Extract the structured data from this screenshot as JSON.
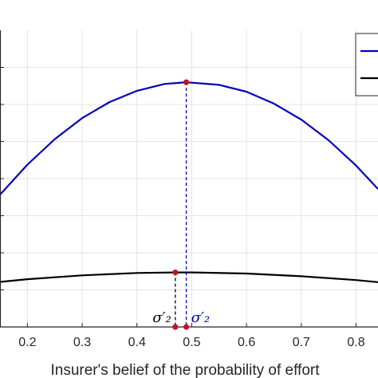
{
  "chart_data": {
    "type": "line",
    "xlabel": "Insurer's belief of the probability of effort",
    "xlim": [
      0.15,
      0.84
    ],
    "ylim": [
      0,
      1
    ],
    "grid": true,
    "x_ticks": [
      0.2,
      0.3,
      0.4,
      0.5,
      0.6,
      0.7,
      0.8
    ],
    "x_tick_labels": [
      "0.2",
      "0.3",
      "0.4",
      "0.5",
      "0.6",
      "0.7",
      "0.8"
    ],
    "y_gridlines": [
      0.125,
      0.25,
      0.375,
      0.5,
      0.625,
      0.75,
      0.875
    ],
    "legend_position": "top-right",
    "series": [
      {
        "color": "#0000c0",
        "x": [
          0.15,
          0.2,
          0.25,
          0.3,
          0.35,
          0.4,
          0.45,
          0.49,
          0.55,
          0.6,
          0.65,
          0.7,
          0.75,
          0.8,
          0.84
        ],
        "values": [
          0.446,
          0.547,
          0.633,
          0.704,
          0.758,
          0.796,
          0.819,
          0.825,
          0.816,
          0.793,
          0.753,
          0.699,
          0.629,
          0.544,
          0.465
        ],
        "peak": {
          "x": 0.49,
          "y": 0.825,
          "label": "σ′₂"
        }
      },
      {
        "color": "#000000",
        "x": [
          0.15,
          0.2,
          0.3,
          0.4,
          0.47,
          0.5,
          0.6,
          0.7,
          0.8,
          0.84
        ],
        "values": [
          0.152,
          0.161,
          0.174,
          0.182,
          0.184,
          0.184,
          0.18,
          0.171,
          0.158,
          0.151
        ],
        "peak": {
          "x": 0.47,
          "y": 0.184,
          "label": "σ′₂"
        }
      }
    ]
  },
  "colors": {
    "grid": "#e3e3e3",
    "marker": "#c0141e",
    "axis": "#262626"
  }
}
